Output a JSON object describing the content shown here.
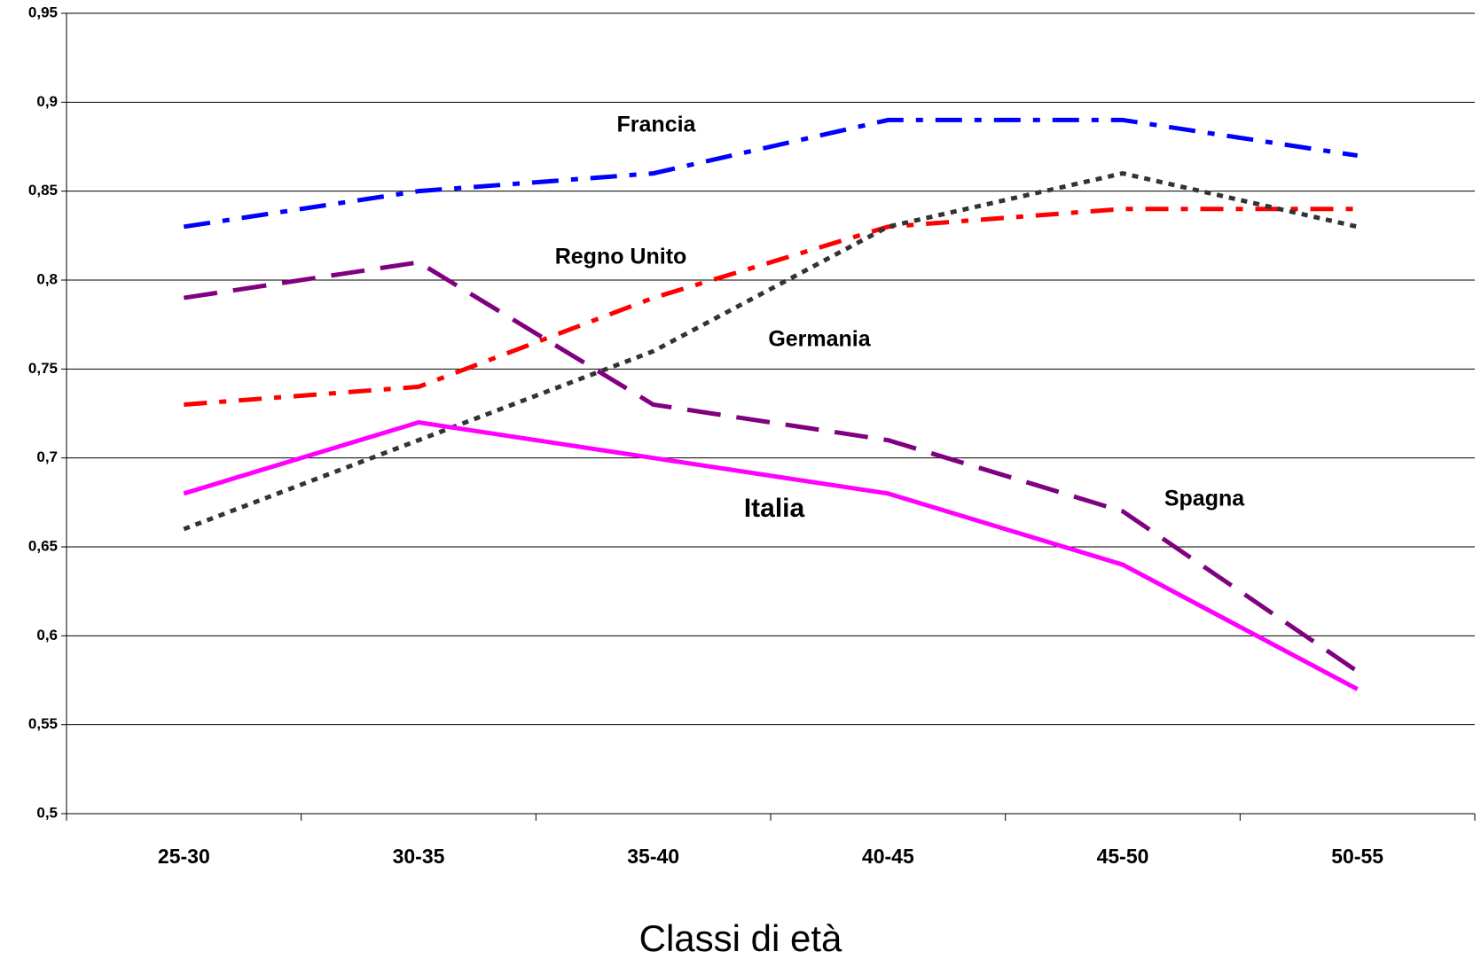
{
  "chart_data": {
    "type": "line",
    "x_label": "Classi di età",
    "categories": [
      "25-30",
      "30-35",
      "35-40",
      "40-45",
      "45-50",
      "50-55"
    ],
    "ylim": [
      0.5,
      0.95
    ],
    "yticks": [
      {
        "value": 0.5,
        "label": "0,5"
      },
      {
        "value": 0.55,
        "label": "0,55"
      },
      {
        "value": 0.6,
        "label": "0,6"
      },
      {
        "value": 0.65,
        "label": "0,65"
      },
      {
        "value": 0.7,
        "label": "0,7"
      },
      {
        "value": 0.75,
        "label": "0,75"
      },
      {
        "value": 0.8,
        "label": "0,8"
      },
      {
        "value": 0.85,
        "label": "0,85"
      },
      {
        "value": 0.9,
        "label": "0,9"
      },
      {
        "value": 0.95,
        "label": "0,95"
      }
    ],
    "grid": true,
    "series": [
      {
        "name": "Francia",
        "color": "#0000ff",
        "values": [
          0.83,
          0.85,
          0.86,
          0.89,
          0.89,
          0.87
        ]
      },
      {
        "name": "Regno Unito",
        "color": "#ff0000",
        "values": [
          0.73,
          0.74,
          0.79,
          0.83,
          0.84,
          0.84
        ]
      },
      {
        "name": "Germania",
        "color": "#333333",
        "values": [
          0.66,
          0.71,
          0.76,
          0.83,
          0.86,
          0.83
        ]
      },
      {
        "name": "Spagna",
        "color": "#800080",
        "values": [
          0.79,
          0.81,
          0.73,
          0.71,
          0.67,
          0.58
        ]
      },
      {
        "name": "Italia",
        "color": "#ff00ff",
        "values": [
          0.68,
          0.72,
          0.7,
          0.68,
          0.64,
          0.57
        ]
      }
    ]
  }
}
